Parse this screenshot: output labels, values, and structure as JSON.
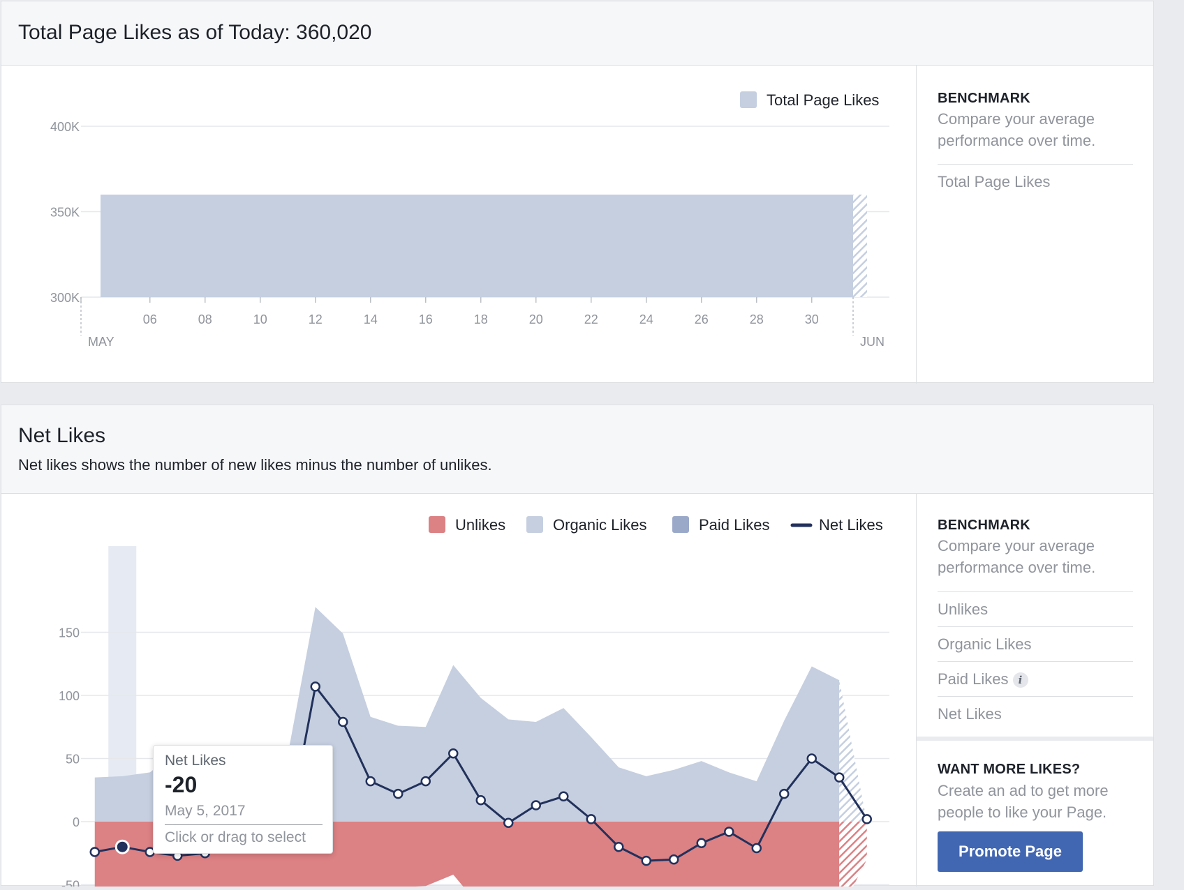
{
  "total_section": {
    "title": "Total Page Likes as of Today: 360,020",
    "benchmark": {
      "heading": "BENCHMARK",
      "description": "Compare your average performance over time.",
      "items": [
        "Total Page Likes"
      ]
    }
  },
  "net_section": {
    "title": "Net Likes",
    "subtitle": "Net likes shows the number of new likes minus the number of unlikes.",
    "benchmark": {
      "heading": "BENCHMARK",
      "description": "Compare your average performance over time.",
      "items": [
        "Unlikes",
        "Organic Likes",
        "Paid Likes",
        "Net Likes"
      ]
    },
    "promo": {
      "heading": "WANT MORE LIKES?",
      "description": "Create an ad to get more people to like your Page.",
      "button_label": "Promote Page"
    },
    "tooltip": {
      "label": "Net Likes",
      "value": "-20",
      "date": "May 5, 2017",
      "hint": "Click or drag to select"
    }
  },
  "colors": {
    "organic": "#c5cfe0",
    "paid": "#9ba9c9",
    "unlikes": "#dc8184",
    "net_line": "#22315b",
    "highlight_band": "#e6ebf3"
  },
  "chart_data": [
    {
      "type": "area",
      "title": "",
      "series": [
        {
          "name": "Total Page Likes",
          "x": [
            4,
            31
          ],
          "values": [
            360000,
            360020
          ]
        }
      ],
      "ylim": [
        300000,
        400000
      ],
      "yticks": [
        300000,
        350000,
        400000
      ],
      "ytick_labels": [
        "300K",
        "350K",
        "400K"
      ],
      "xticks": [
        6,
        8,
        10,
        12,
        14,
        16,
        18,
        20,
        22,
        24,
        26,
        28,
        30
      ],
      "xtick_labels": [
        "06",
        "08",
        "10",
        "12",
        "14",
        "16",
        "18",
        "20",
        "22",
        "24",
        "26",
        "28",
        "30"
      ],
      "month_labels": [
        "MAY",
        "JUN"
      ],
      "legend": "top-right",
      "grid": true
    },
    {
      "type": "area",
      "title": "",
      "x": [
        4,
        5,
        6,
        7,
        8,
        9,
        10,
        11,
        12,
        13,
        14,
        15,
        16,
        17,
        18,
        19,
        20,
        21,
        22,
        23,
        24,
        25,
        26,
        27,
        28,
        29,
        30,
        31,
        32
      ],
      "series": [
        {
          "name": "Organic Likes",
          "kind": "area",
          "values": [
            35,
            36,
            39,
            56,
            46,
            46,
            48,
            53,
            170,
            149,
            83,
            76,
            75,
            124,
            98,
            81,
            79,
            90,
            67,
            43,
            36,
            41,
            48,
            39,
            32,
            80,
            123,
            112,
            0
          ]
        },
        {
          "name": "Paid Likes",
          "kind": "area",
          "values": [
            0,
            0,
            0,
            0,
            0,
            0,
            0,
            0,
            0,
            0,
            0,
            0,
            0,
            0,
            0,
            0,
            0,
            0,
            0,
            0,
            0,
            0,
            0,
            0,
            0,
            0,
            0,
            0,
            0
          ]
        },
        {
          "name": "Unlikes",
          "kind": "area",
          "values": [
            -59,
            -56,
            -55,
            -63,
            -69,
            -62,
            -60,
            -58,
            -60,
            -63,
            -68,
            -52,
            -51,
            -42,
            -68,
            -78,
            -67,
            -65,
            -64,
            -59,
            -58,
            -61,
            -71,
            -64,
            -59,
            -63,
            -67,
            -73,
            -30
          ]
        },
        {
          "name": "Net Likes",
          "kind": "line",
          "values": [
            -24,
            -20,
            -24,
            -27,
            -25,
            -18,
            -10,
            -8,
            107,
            79,
            32,
            22,
            32,
            54,
            17,
            -1,
            13,
            20,
            2,
            -20,
            -31,
            -30,
            -17,
            -8,
            -21,
            22,
            50,
            35,
            2
          ]
        }
      ],
      "highlight_x": 5,
      "ylim": [
        -70,
        170
      ],
      "yticks": [
        -50,
        0,
        50,
        100,
        150
      ],
      "ytick_labels": [
        "-50",
        "0",
        "50",
        "100",
        "150"
      ],
      "legend": "top-right",
      "grid": true
    }
  ]
}
